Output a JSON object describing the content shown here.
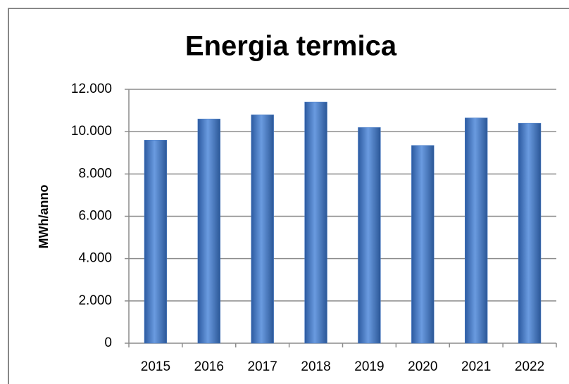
{
  "chart_data": {
    "type": "bar",
    "title": "Energia termica",
    "y_label": "MWh/anno",
    "categories": [
      "2015",
      "2016",
      "2017",
      "2018",
      "2019",
      "2020",
      "2021",
      "2022"
    ],
    "values": [
      9600,
      10600,
      10800,
      11400,
      10200,
      9350,
      10650,
      10400
    ],
    "color": "#4a7ec8",
    "ylim": [
      0,
      12000
    ],
    "yticks": [
      0,
      {
        "value": 2000,
        "label": "2.000"
      },
      {
        "value": 4000,
        "label": "4.000"
      },
      {
        "value": 6000,
        "label": "6.000"
      },
      {
        "value": 8000,
        "label": "8.000"
      },
      {
        "value": 10000,
        "label": "10.000"
      },
      {
        "value": 12000,
        "label": "12.000"
      }
    ],
    "grid": true
  }
}
